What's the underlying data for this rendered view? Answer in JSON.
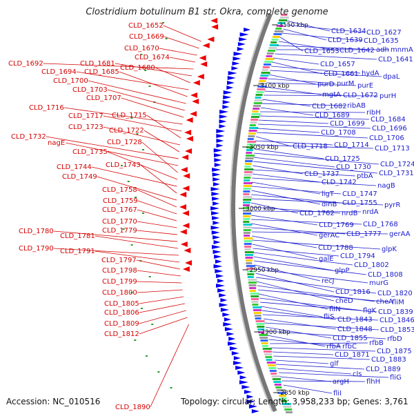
{
  "header": {
    "title": "Clostridium botulinum B1 str. Okra, complete genome"
  },
  "footer": {
    "accession": "Accession: NC_010516",
    "summary": "Topology: circular; Length: 3,958,233 bp; Genes: 3,761"
  },
  "kbp_ticks": [
    "3150 kbp",
    "3100 kbp",
    "3050 kbp",
    "3000 kbp",
    "2950 kbp",
    "2900 kbp",
    "2850 kbp"
  ],
  "left_labels": [
    "CLD_1652",
    "CLD_1669",
    "CLD_1670",
    "CLD_1674",
    "CLD_1692",
    "CLD_1681",
    "CLD_1680",
    "CLD_1694",
    "CLD_1685",
    "CLD_1700",
    "CLD_1703",
    "CLD_1707",
    "CLD_1716",
    "CLD_1717",
    "CLD_1715",
    "CLD_1723",
    "CLD_1722",
    "CLD_1732",
    "nagE",
    "CLD_1728",
    "CLD_1735",
    "CLD_1744",
    "CLD_1743",
    "CLD_1749",
    "CLD_1758",
    "CLD_1759",
    "CLD_1767",
    "CLD_1770",
    "CLD_1779",
    "CLD_1780",
    "CLD_1781",
    "CLD_1790",
    "CLD_1791",
    "CLD_1797",
    "CLD_1798",
    "CLD_1799",
    "CLD_1800",
    "CLD_1805",
    "CLD_1806",
    "CLD_1809",
    "CLD_1812",
    "CLD_1890"
  ],
  "right_labels": [
    "CLD_1634",
    "CLD_1627",
    "CLD_1639",
    "CLD_1635",
    "CLD_1653",
    "CLD_1642",
    "adh",
    "mnmA",
    "CLD_1641",
    "CLD_1657",
    "CLD_1661",
    "hydA",
    "dpaL",
    "purD",
    "purM",
    "purE",
    "mgtA",
    "CLD_1672",
    "purH",
    "CLD_1682",
    "ribAB",
    "CLD_1689",
    "ribH",
    "CLD_1684",
    "CLD_1699",
    "CLD_1696",
    "CLD_1708",
    "CLD_1706",
    "CLD_1718",
    "CLD_1714",
    "CLD_1713",
    "CLD_1725",
    "CLD_1724",
    "CLD_1730",
    "CLD_1731",
    "CLD_1737",
    "ptbA",
    "CLD_1742",
    "nagB",
    "ligT",
    "CLD_1747",
    "dinB",
    "CLD_1755",
    "pyrR",
    "CLD_1762",
    "nrdB",
    "nrdA",
    "CLD_1769",
    "CLD_1768",
    "gerAC",
    "CLD_1777",
    "gerAA",
    "CLD_1788",
    "glpK",
    "galE",
    "CLD_1794",
    "CLD_1802",
    "glpP",
    "CLD_1808",
    "recJ",
    "murG",
    "CLD_1816",
    "CLD_1820",
    "cheD",
    "cheA",
    "fliM",
    "fliN",
    "flgK",
    "CLD_1839",
    "fliS",
    "CLD_1843",
    "CLD_1846",
    "CLD_1848",
    "CLD_1853",
    "CLD_1855",
    "rfbD",
    "rfbA",
    "rfbC",
    "rfbB",
    "CLD_1875",
    "CLD_1871",
    "CLD_1883",
    "glf",
    "CLD_1889",
    "cls",
    "fliG",
    "argH",
    "flhH",
    "fliI"
  ],
  "colors": {
    "left_label": "#d40000",
    "right_label": "#1a1acc",
    "backbone": "#9a9a9a",
    "orf": "#0000ee"
  }
}
